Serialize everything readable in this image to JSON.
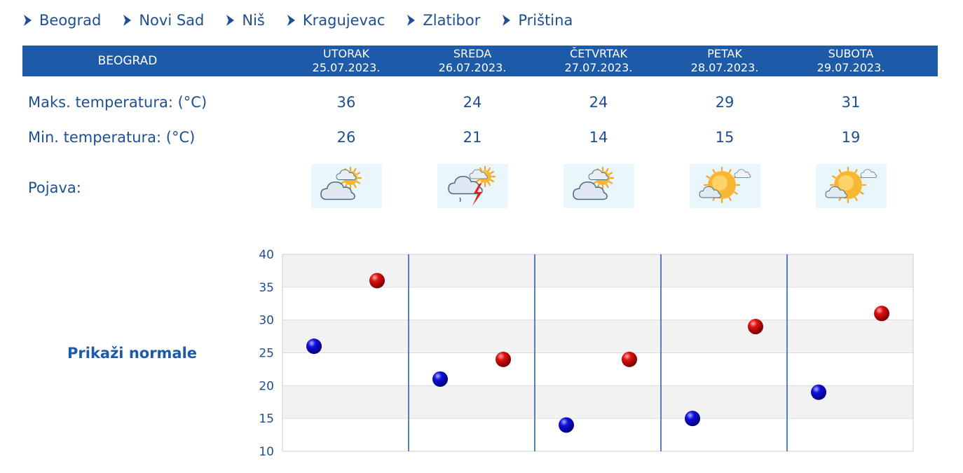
{
  "nav": {
    "cities": [
      "Beograd",
      "Novi Sad",
      "Niš",
      "Kragujevac",
      "Zlatibor",
      "Priština"
    ]
  },
  "header": {
    "city": "BEOGRAD",
    "days": [
      {
        "name": "UTORAK",
        "date": "25.07.2023."
      },
      {
        "name": "SREDA",
        "date": "26.07.2023."
      },
      {
        "name": "ČETVRTAK",
        "date": "27.07.2023."
      },
      {
        "name": "PETAK",
        "date": "28.07.2023."
      },
      {
        "name": "SUBOTA",
        "date": "29.07.2023."
      }
    ]
  },
  "rows": {
    "max_label": "Maks. temperatura: (°C)",
    "min_label": "Min. temperatura: (°C)",
    "phenomenon_label": "Pojava:"
  },
  "icons": [
    "partly-cloudy-icon",
    "thunderstorm-icon",
    "partly-cloudy-icon",
    "mostly-sunny-icon",
    "mostly-sunny-icon"
  ],
  "normals_link": "Prikaži normale",
  "colors": {
    "header_bg": "#1d5aa8",
    "text": "#1d4f91",
    "max_marker": "#cc0000",
    "min_marker": "#0000cc"
  },
  "chart_data": {
    "type": "scatter",
    "categories": [
      "25.07.2023.",
      "26.07.2023.",
      "27.07.2023.",
      "28.07.2023.",
      "29.07.2023."
    ],
    "series": [
      {
        "values": [
          26,
          21,
          14,
          15,
          19
        ]
      },
      {
        "values": [
          36,
          24,
          24,
          29,
          31
        ]
      }
    ],
    "yticks": [
      "10",
      "15",
      "20",
      "25",
      "30",
      "35",
      "40"
    ],
    "ylim": [
      10,
      40
    ],
    "grid": true
  }
}
